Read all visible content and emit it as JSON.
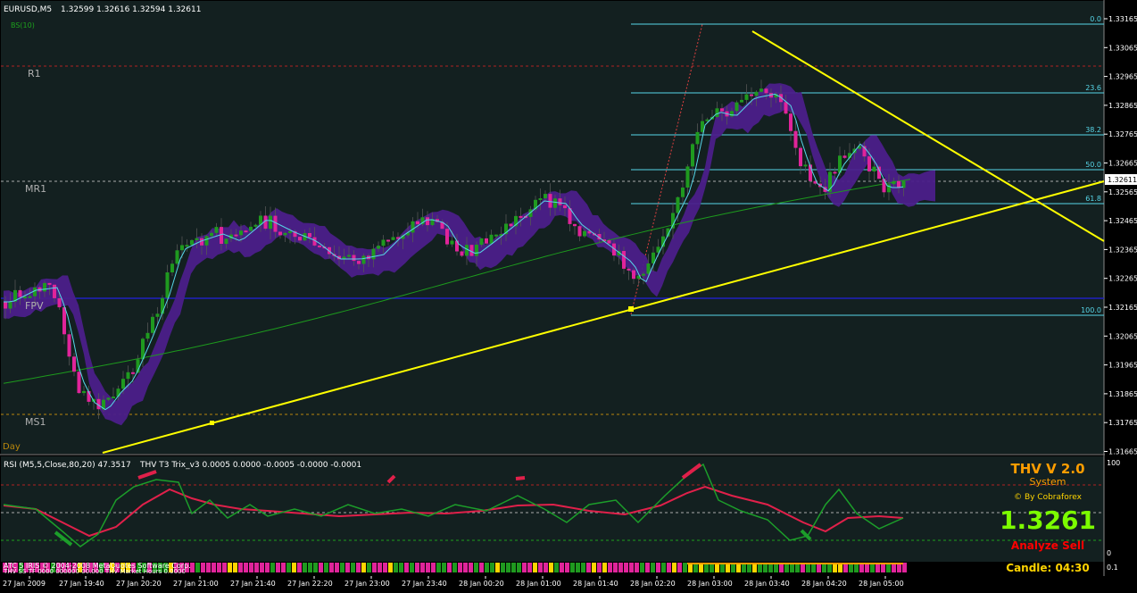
{
  "main_header": {
    "symbol": "EURUSD,M5",
    "ohlc": "1.32599 1.32616 1.32594 1.32611",
    "indicator": "BS(10)"
  },
  "pivot_labels": {
    "r1": "R1",
    "mr1": "MR1",
    "fpv": "FPV",
    "ms1": "MS1",
    "day": "Day"
  },
  "fib_labels": [
    "0.0",
    "23.6",
    "38.2",
    "50.0",
    "61.8",
    "100.0"
  ],
  "price_axis": [
    "1.33165",
    "1.33065",
    "1.32965",
    "1.32865",
    "1.32765",
    "1.32665",
    "1.32565",
    "1.32465",
    "1.32365",
    "1.32265",
    "1.32165",
    "1.32065",
    "1.31965",
    "1.31865",
    "1.31765",
    "1.31665"
  ],
  "current_price_tag": "1.32611",
  "time_axis": [
    "27 Jan 2009",
    "27 Jan 19:40",
    "27 Jan 20:20",
    "27 Jan 21:00",
    "27 Jan 21:40",
    "27 Jan 22:20",
    "27 Jan 23:00",
    "27 Jan 23:40",
    "28 Jan 00:20",
    "28 Jan 01:00",
    "28 Jan 01:40",
    "28 Jan 02:20",
    "28 Jan 03:00",
    "28 Jan 03:40",
    "28 Jan 04:20",
    "28 Jan 05:00"
  ],
  "sub_header": {
    "rsi": "RSI (M5,5,Close,80,20) 47.3517",
    "thv": "THV T3 Trix_v3  0.0005 0.0000 -0.0005 -0.0000 -0.0001"
  },
  "sub_axis": {
    "top": "100",
    "bottom": "0"
  },
  "status_bar": {
    "left_text": "ATC 5 IRIS © 2004-2008 MetaQuotes Software Corp.",
    "left_text2": "THV SS TF 0000 000000 00.000 THV Market Hours 0.0000",
    "candle": "Candle:  04:30",
    "right_value": "0.1"
  },
  "thv_panel": {
    "title": "THV V 2.0",
    "subtitle": "System",
    "by": "© By Cobraforex",
    "price": "1.3261",
    "signal": "Analyze Sell"
  },
  "colors": {
    "background": "#132020",
    "bull": "#1f9a1f",
    "bear": "#e0249a",
    "cyan": "#57d6e8",
    "ribbon": "#4b1f8a",
    "trendline": "#ffff00",
    "rsi_green": "#1c9e2a",
    "rsi_red": "#e0204a"
  }
}
